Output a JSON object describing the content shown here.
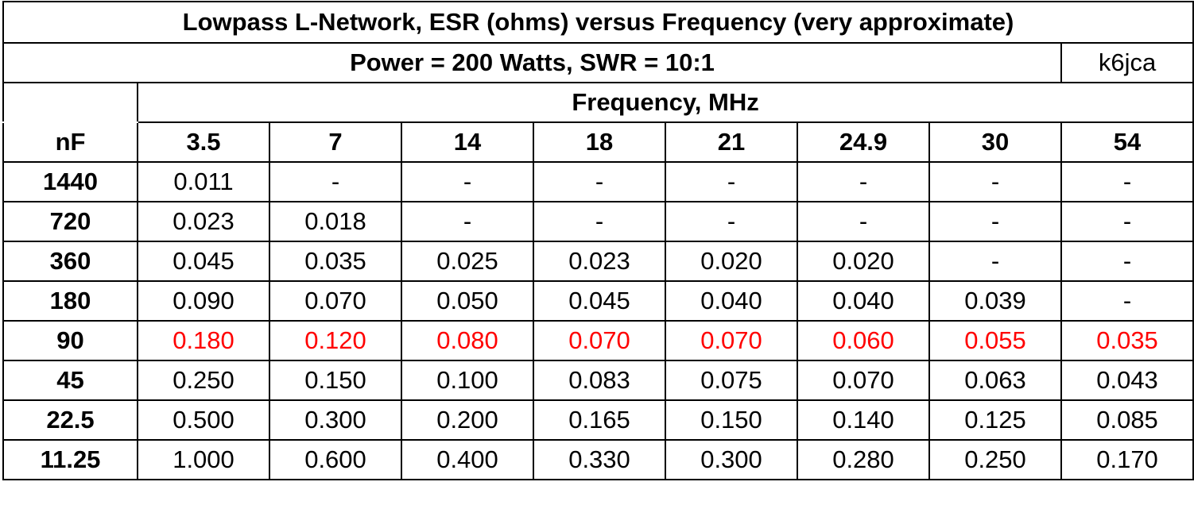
{
  "title": "Lowpass L-Network, ESR (ohms) versus Frequency (very approximate)",
  "subtitle": "Power = 200 Watts, SWR = 10:1",
  "author": "k6jca",
  "frequency_header": "Frequency, MHz",
  "row_header": "nF",
  "frequencies": [
    "3.5",
    "7",
    "14",
    "18",
    "21",
    "24.9",
    "30",
    "54"
  ],
  "highlight_color": "#ff0000",
  "rows": [
    {
      "nF": "1440",
      "highlight": false,
      "values": [
        "0.011",
        "-",
        "-",
        "-",
        "-",
        "-",
        "-",
        "-"
      ]
    },
    {
      "nF": "720",
      "highlight": false,
      "values": [
        "0.023",
        "0.018",
        "-",
        "-",
        "-",
        "-",
        "-",
        "-"
      ]
    },
    {
      "nF": "360",
      "highlight": false,
      "values": [
        "0.045",
        "0.035",
        "0.025",
        "0.023",
        "0.020",
        "0.020",
        "-",
        "-"
      ]
    },
    {
      "nF": "180",
      "highlight": false,
      "values": [
        "0.090",
        "0.070",
        "0.050",
        "0.045",
        "0.040",
        "0.040",
        "0.039",
        "-"
      ]
    },
    {
      "nF": "90",
      "highlight": true,
      "values": [
        "0.180",
        "0.120",
        "0.080",
        "0.070",
        "0.070",
        "0.060",
        "0.055",
        "0.035"
      ]
    },
    {
      "nF": "45",
      "highlight": false,
      "values": [
        "0.250",
        "0.150",
        "0.100",
        "0.083",
        "0.075",
        "0.070",
        "0.063",
        "0.043"
      ]
    },
    {
      "nF": "22.5",
      "highlight": false,
      "values": [
        "0.500",
        "0.300",
        "0.200",
        "0.165",
        "0.150",
        "0.140",
        "0.125",
        "0.085"
      ]
    },
    {
      "nF": "11.25",
      "highlight": false,
      "values": [
        "1.000",
        "0.600",
        "0.400",
        "0.330",
        "0.300",
        "0.280",
        "0.250",
        "0.170"
      ]
    }
  ]
}
